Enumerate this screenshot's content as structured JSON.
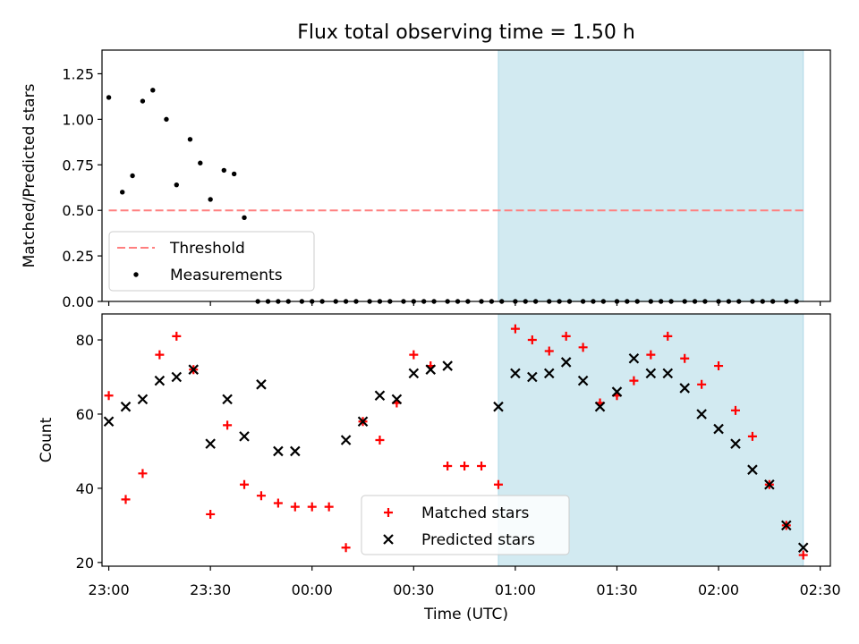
{
  "figure_title": "Flux total observing time = 1.50 h",
  "colors": {
    "shade": "#add8e6",
    "threshold": "#ff7f7f",
    "measurement": "#000000",
    "matched": "#ff0000",
    "predicted": "#000000"
  },
  "chart_data": [
    {
      "type": "scatter",
      "title": "Flux total observing time = 1.50 h",
      "xlabel": "",
      "ylabel": "Matched/Predicted stars",
      "ylim": [
        0,
        1.38
      ],
      "yticks": [
        0.0,
        0.25,
        0.5,
        0.75,
        1.0,
        1.25
      ],
      "ytick_labels": [
        "0.00",
        "0.25",
        "0.50",
        "0.75",
        "1.00",
        "1.25"
      ],
      "xlim": [
        "22:58",
        "02:33"
      ],
      "shaded_interval": [
        "00:55",
        "02:25"
      ],
      "threshold": {
        "name": "Threshold",
        "y": 0.5,
        "x": [
          "23:00",
          "02:25"
        ]
      },
      "legend_position": "lower-left",
      "series": [
        {
          "name": "Measurements",
          "x": [
            "23:00",
            "23:04",
            "23:07",
            "23:10",
            "23:13",
            "23:17",
            "23:20",
            "23:24",
            "23:27",
            "23:30",
            "23:34",
            "23:37",
            "23:40",
            "23:44",
            "23:47",
            "23:50",
            "23:53",
            "23:57",
            "00:00",
            "00:03",
            "00:07",
            "00:10",
            "00:13",
            "00:17",
            "00:20",
            "00:23",
            "00:27",
            "00:30",
            "00:33",
            "00:36",
            "00:40",
            "00:43",
            "00:46",
            "00:50",
            "00:53",
            "00:56",
            "01:00",
            "01:03",
            "01:06",
            "01:10",
            "01:13",
            "01:16",
            "01:20",
            "01:23",
            "01:26",
            "01:30",
            "01:33",
            "01:36",
            "01:40",
            "01:43",
            "01:46",
            "01:50",
            "01:53",
            "01:56",
            "02:00",
            "02:03",
            "02:06",
            "02:10",
            "02:13",
            "02:16",
            "02:20",
            "02:23"
          ],
          "y": [
            1.12,
            0.6,
            0.69,
            1.1,
            1.16,
            1.0,
            0.64,
            0.89,
            0.76,
            0.56,
            0.72,
            0.7,
            0.46,
            0,
            0.0,
            0.0,
            0.0,
            0.0,
            0.0,
            0.0,
            0.0,
            0.0,
            0.0,
            0.0,
            0.0,
            0.0,
            0.0,
            0.0,
            0.0,
            0.0,
            0.0,
            0.0,
            0.0,
            0.0,
            0.0,
            0.0,
            0.0,
            0.0,
            0.0,
            0.0,
            0.0,
            0.0,
            0.0,
            0.0,
            0.0,
            0.0,
            0.0,
            0.0,
            0.0,
            0.0,
            0.0,
            0.0,
            0.0,
            0.0,
            0.0,
            0.0,
            0.0,
            0.0,
            0.0,
            0.0,
            0.0,
            0.0
          ]
        }
      ]
    },
    {
      "type": "scatter",
      "title": "",
      "xlabel": "Time (UTC)",
      "ylabel": "Count",
      "ylim": [
        19,
        87
      ],
      "yticks": [
        20,
        40,
        60,
        80
      ],
      "ytick_labels": [
        "20",
        "40",
        "60",
        "80"
      ],
      "xlim": [
        "22:58",
        "02:33"
      ],
      "xticks": [
        "23:00",
        "23:30",
        "00:00",
        "00:30",
        "01:00",
        "01:30",
        "02:00",
        "02:30"
      ],
      "shaded_interval": [
        "00:55",
        "02:25"
      ],
      "legend_position": "lower-center",
      "series": [
        {
          "name": "Matched stars",
          "x": [
            "23:00",
            "23:05",
            "23:10",
            "23:15",
            "23:20",
            "23:25",
            "23:30",
            "23:35",
            "23:40",
            "23:45",
            "23:50",
            "23:55",
            "00:00",
            "00:05",
            "00:10",
            "00:15",
            "00:20",
            "00:25",
            "00:30",
            "00:35",
            "00:40",
            "00:45",
            "00:50",
            "00:55",
            "01:00",
            "01:05",
            "01:10",
            "01:15",
            "01:20",
            "01:25",
            "01:30",
            "01:35",
            "01:40",
            "01:45",
            "01:50",
            "01:55",
            "02:00",
            "02:05",
            "02:10",
            "02:15",
            "02:20",
            "02:25"
          ],
          "y": [
            65,
            37,
            44,
            76,
            81,
            72,
            33,
            57,
            41,
            38,
            36,
            35,
            35,
            35,
            24,
            58,
            53,
            63,
            76,
            73,
            46,
            46,
            46,
            41,
            83,
            80,
            77,
            81,
            78,
            63,
            65,
            69,
            76,
            81,
            75,
            68,
            73,
            61,
            54,
            41,
            30,
            22
          ]
        },
        {
          "name": "Predicted stars",
          "x": [
            "23:00",
            "23:05",
            "23:10",
            "23:15",
            "23:20",
            "23:25",
            "23:30",
            "23:35",
            "23:40",
            "23:45",
            "23:50",
            "23:55",
            "00:10",
            "00:15",
            "00:20",
            "00:25",
            "00:30",
            "00:35",
            "00:40",
            "00:55",
            "01:00",
            "01:05",
            "01:10",
            "01:15",
            "01:20",
            "01:25",
            "01:30",
            "01:35",
            "01:40",
            "01:45",
            "01:50",
            "01:55",
            "02:00",
            "02:05",
            "02:10",
            "02:15",
            "02:20",
            "02:25"
          ],
          "y": [
            58,
            62,
            64,
            69,
            70,
            72,
            52,
            64,
            54,
            68,
            50,
            50,
            53,
            58,
            65,
            64,
            71,
            72,
            73,
            62,
            71,
            70,
            71,
            74,
            69,
            62,
            66,
            75,
            71,
            71,
            67,
            60,
            56,
            52,
            45,
            41,
            30,
            24
          ]
        }
      ]
    }
  ]
}
